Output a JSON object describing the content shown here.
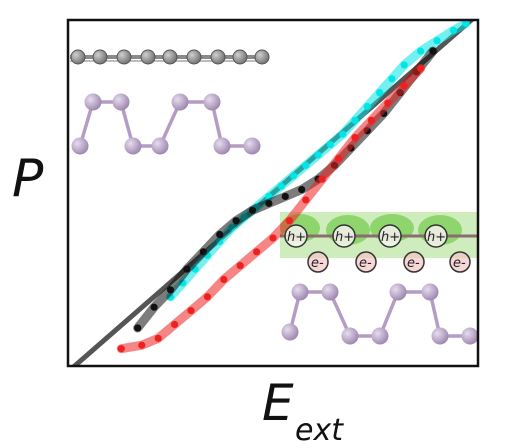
{
  "chart_data": {
    "type": "line",
    "title": "",
    "ylabel": "P",
    "xlabel": "E",
    "xlabel_sub": "ext",
    "xlim": [
      0,
      1
    ],
    "ylim": [
      0,
      1
    ],
    "grid": false,
    "ticks": "none",
    "reference_line": {
      "x": [
        -0.1,
        1.1
      ],
      "y": [
        -0.12,
        1.12
      ],
      "color": "#555555"
    },
    "series": [
      {
        "name": "",
        "color": "#00e5e5",
        "x": [
          0.25,
          0.28,
          0.31,
          0.34,
          0.37,
          0.4,
          0.43,
          0.46,
          0.49,
          0.52,
          0.55,
          0.58,
          0.61,
          0.64,
          0.67,
          0.7,
          0.73,
          0.76,
          0.79,
          0.82,
          0.86,
          0.9,
          0.94,
          0.97
        ],
        "y": [
          0.2,
          0.24,
          0.28,
          0.32,
          0.36,
          0.4,
          0.43,
          0.46,
          0.49,
          0.52,
          0.55,
          0.58,
          0.61,
          0.64,
          0.67,
          0.71,
          0.75,
          0.79,
          0.83,
          0.87,
          0.91,
          0.94,
          0.97,
          0.99
        ]
      },
      {
        "name": "",
        "color": "#111111",
        "x": [
          0.17,
          0.21,
          0.25,
          0.29,
          0.33,
          0.37,
          0.41,
          0.45,
          0.49,
          0.53,
          0.57,
          0.61,
          0.65,
          0.69,
          0.73,
          0.77,
          0.81,
          0.85,
          0.89
        ],
        "y": [
          0.11,
          0.17,
          0.22,
          0.28,
          0.33,
          0.38,
          0.42,
          0.45,
          0.47,
          0.49,
          0.51,
          0.54,
          0.58,
          0.63,
          0.68,
          0.73,
          0.79,
          0.85,
          0.91
        ]
      },
      {
        "name": "",
        "color": "#ee2020",
        "x": [
          0.13,
          0.18,
          0.22,
          0.26,
          0.3,
          0.34,
          0.38,
          0.42,
          0.46,
          0.5,
          0.54,
          0.58,
          0.62,
          0.66,
          0.7,
          0.74,
          0.78,
          0.82,
          0.86
        ],
        "y": [
          0.05,
          0.06,
          0.08,
          0.12,
          0.16,
          0.2,
          0.25,
          0.29,
          0.33,
          0.37,
          0.42,
          0.48,
          0.54,
          0.6,
          0.66,
          0.71,
          0.76,
          0.81,
          0.86
        ]
      }
    ]
  },
  "insets": {
    "top_left": {
      "description_icon": "bilayer-lattice-icon"
    },
    "bottom_right": {
      "hole_label": "h+",
      "electron_label": "e-"
    }
  },
  "colors": {
    "cyan": "#00e5e5",
    "black": "#111111",
    "red": "#ee2020",
    "atom_gray": "#8a8a8a",
    "atom_purple": "#b9a2c6",
    "charge_green": "#7dcf5a",
    "charge_pink": "#f2c4c4"
  }
}
